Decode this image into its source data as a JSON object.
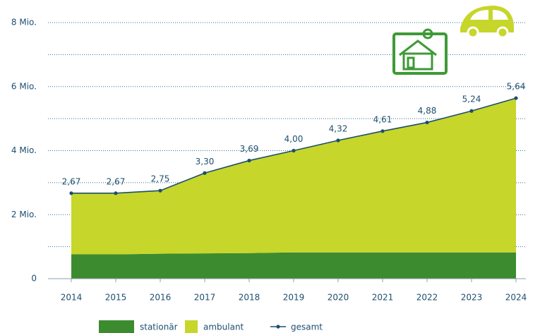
{
  "chart_data": {
    "type": "stacked-area-line",
    "categories": [
      "2014",
      "2015",
      "2016",
      "2017",
      "2018",
      "2019",
      "2020",
      "2021",
      "2022",
      "2023",
      "2024"
    ],
    "series": [
      {
        "name": "stationär",
        "color": "#3d8b2f",
        "values": [
          0.76,
          0.76,
          0.78,
          0.79,
          0.8,
          0.82,
          0.82,
          0.82,
          0.82,
          0.82,
          0.82
        ]
      },
      {
        "name": "ambulant",
        "color": "#c6d62b",
        "values": [
          1.91,
          1.91,
          1.97,
          2.51,
          2.89,
          3.18,
          3.5,
          3.79,
          4.06,
          4.42,
          4.82
        ]
      },
      {
        "name": "gesamt",
        "color": "#1d4f6e",
        "line": true,
        "values": [
          2.67,
          2.67,
          2.75,
          3.3,
          3.69,
          4.0,
          4.32,
          4.61,
          4.88,
          5.24,
          5.64
        ],
        "value_labels": [
          "2,67",
          "2,67",
          "2,75",
          "3,30",
          "3,69",
          "4,00",
          "4,32",
          "4,61",
          "4,88",
          "5,24",
          "5,64"
        ]
      }
    ],
    "ylim": [
      0,
      8
    ],
    "yticks": [
      0,
      {
        "value": 2,
        "label": "2 Mio."
      },
      {
        "value": 4,
        "label": "4 Mio."
      },
      {
        "value": 6,
        "label": "6 Mio."
      },
      {
        "value": 8,
        "label": "8 Mio."
      }
    ],
    "minor_yticks": [
      1,
      3,
      5,
      7
    ],
    "grid": true
  }
}
